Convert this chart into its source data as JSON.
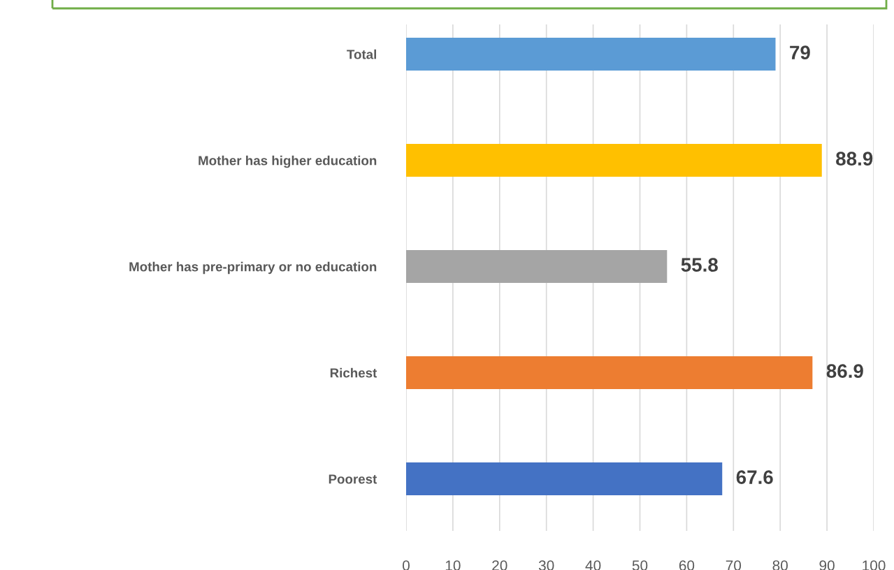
{
  "chart_data": {
    "type": "bar",
    "orientation": "horizontal",
    "categories": [
      "Total",
      "Mother has higher education",
      "Mother has pre-primary or no education",
      "Richest",
      "Poorest"
    ],
    "values": [
      79,
      88.9,
      55.8,
      86.9,
      67.6
    ],
    "colors": [
      "#5b9bd5",
      "#ffc000",
      "#a5a5a5",
      "#ed7d31",
      "#4472c4"
    ],
    "xlim": [
      0,
      100
    ],
    "xticks": [
      0,
      10,
      20,
      30,
      40,
      50,
      60,
      70,
      80,
      90,
      100
    ],
    "grid": "x",
    "data_labels": true,
    "legend": false
  }
}
